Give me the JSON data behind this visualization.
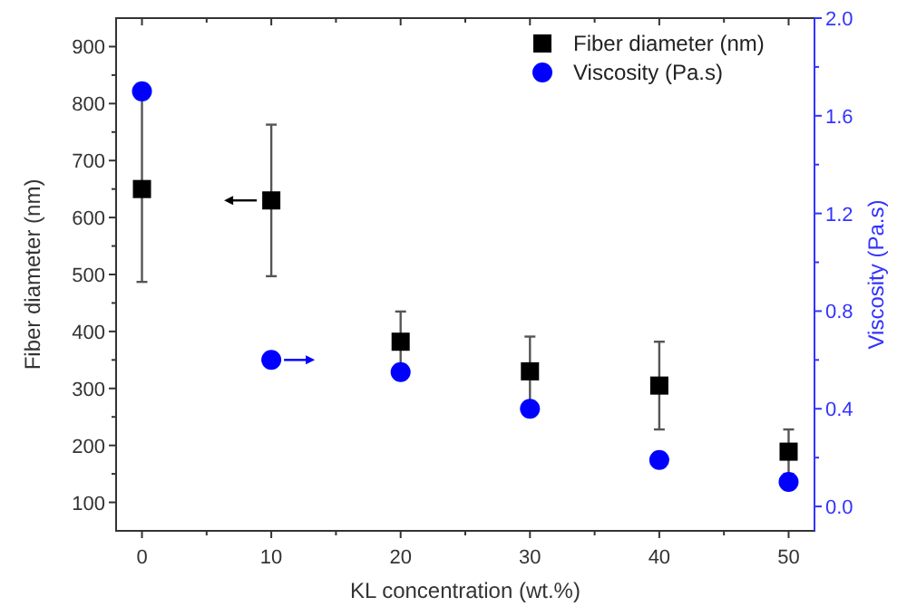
{
  "chart_data": {
    "type": "scatter",
    "xlabel": "KL concentration (wt.%)",
    "ylabel": "Fiber diameter (nm)",
    "y2label": "Viscosity (Pa.s)",
    "x": [
      0,
      10,
      20,
      30,
      40,
      50
    ],
    "xlim": [
      -2,
      52
    ],
    "xticks": [
      0,
      10,
      20,
      30,
      40,
      50
    ],
    "ylim": [
      50,
      950
    ],
    "yticks": [
      100,
      200,
      300,
      400,
      500,
      600,
      700,
      800,
      900
    ],
    "y2lim": [
      -0.1,
      2.0
    ],
    "y2ticks": [
      {
        "value": 0,
        "label": "0.0"
      },
      0.4,
      0.8,
      1.2,
      1.6,
      {
        "value": 2,
        "label": "2.0"
      }
    ],
    "legend": "top right",
    "grid": false,
    "series": [
      {
        "name": "Fiber diameter (nm)",
        "color": "#000000",
        "marker": "square",
        "values": [
          650,
          630,
          382,
          330,
          305,
          189
        ],
        "errors": [
          163,
          133,
          53,
          61,
          77,
          39
        ]
      },
      {
        "name": "Viscosity (Pa.s)",
        "color": "#0000ff",
        "marker": "circle",
        "axis": "y2",
        "values": [
          1.7,
          0.6,
          0.55,
          0.4,
          0.19,
          0.1
        ]
      }
    ]
  }
}
